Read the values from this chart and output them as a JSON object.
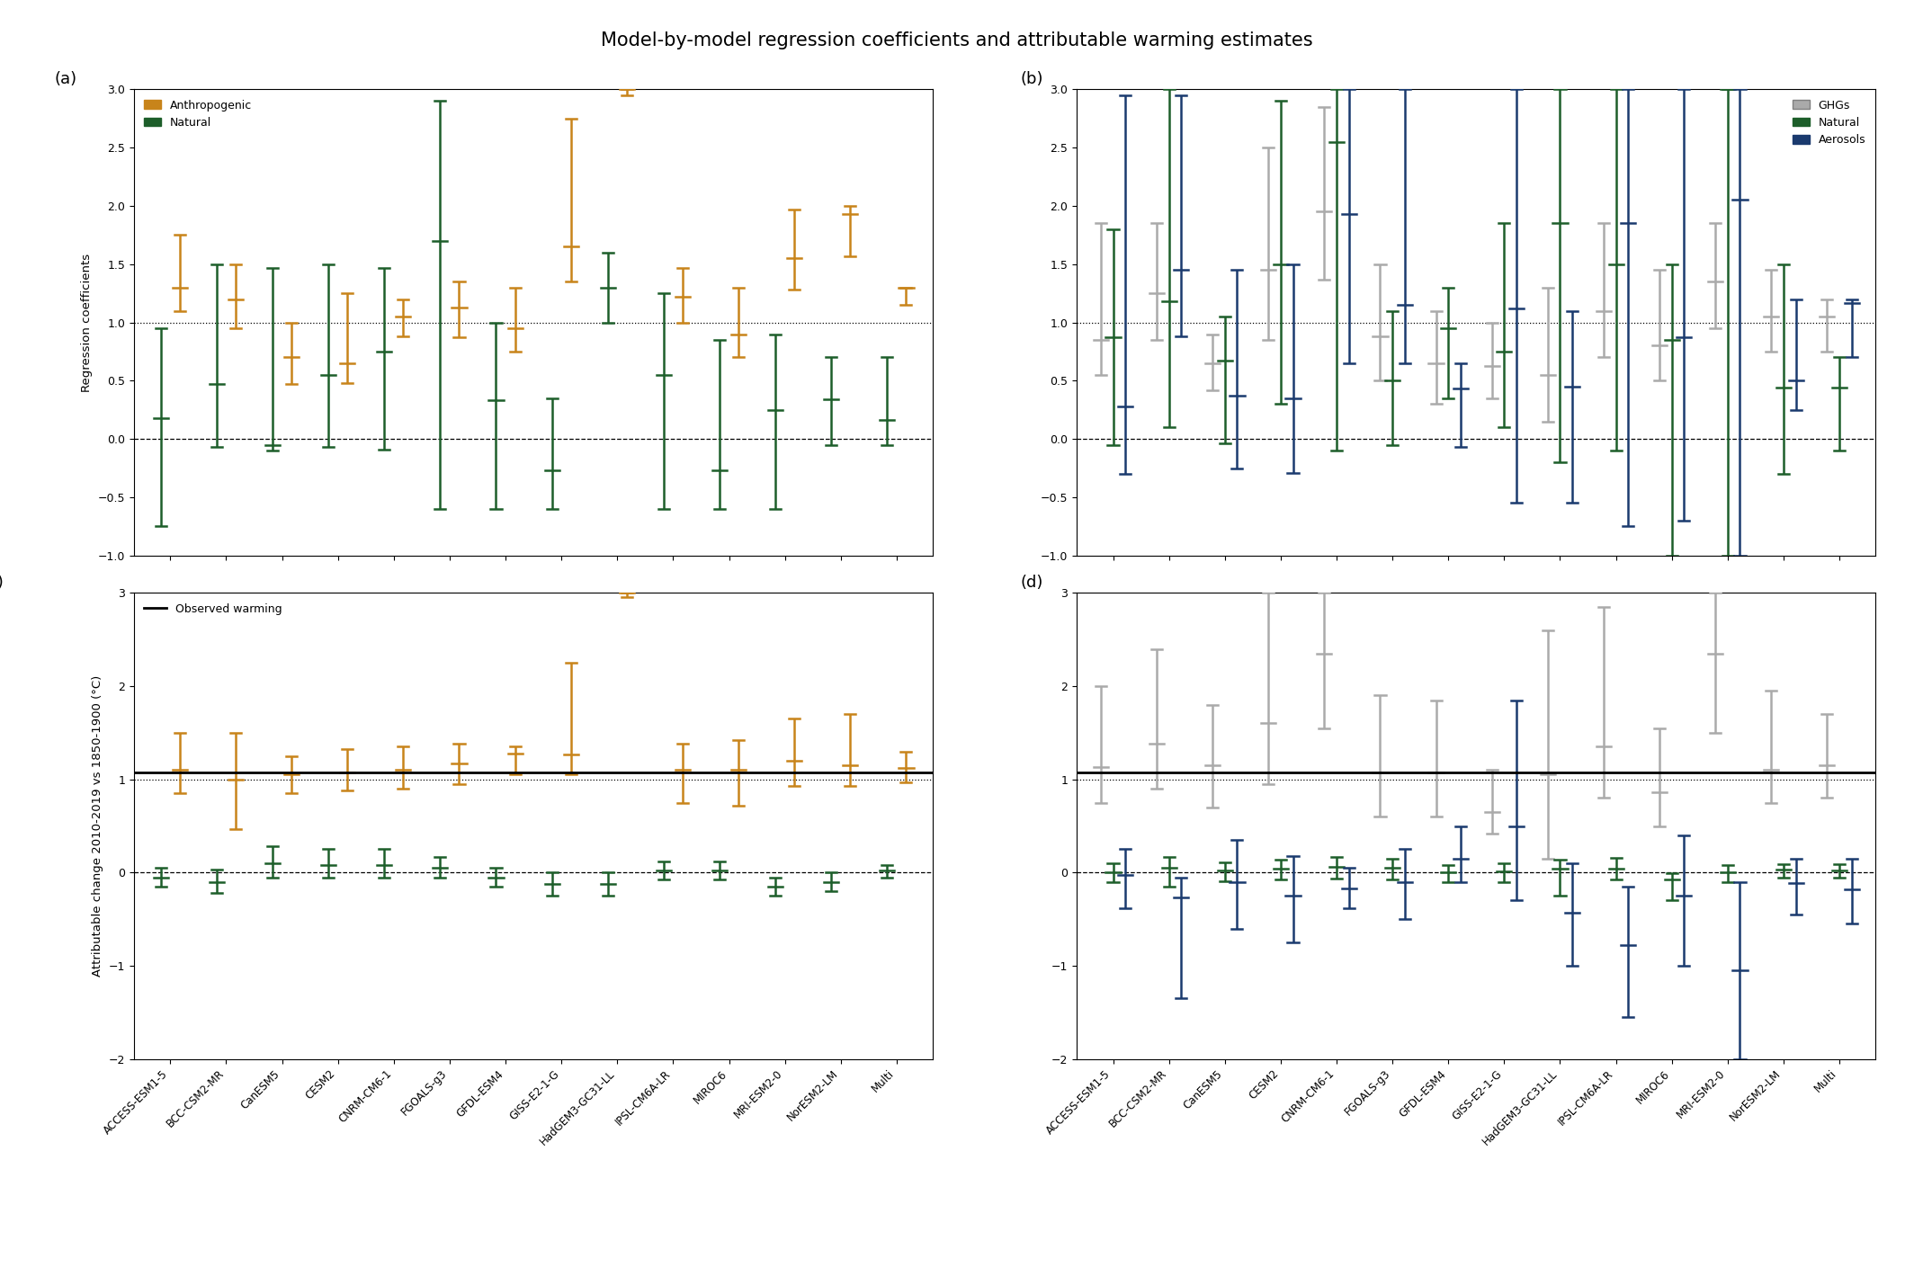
{
  "title": "Model-by-model regression coefficients and attributable warming estimates",
  "models": [
    "ACCESS-ESM1-5",
    "BCC-CSM2-MR",
    "CanESM5",
    "CESM2",
    "CNRM-CM6-1",
    "FGOALS-g3",
    "GFDL-ESM4",
    "GISS-E2-1-G",
    "HadGEM3-GC31-LL",
    "IPSL-CM6A-LR",
    "MIROC6",
    "MRI-ESM2-0",
    "NorESM2-LM",
    "Multi"
  ],
  "color_anthro": "#C8841A",
  "color_nat": "#1D5E2A",
  "color_ghg": "#AAAAAA",
  "color_aer": "#1A3A6E",
  "panel_a": {
    "anthro_center": [
      1.3,
      1.2,
      0.7,
      0.65,
      1.05,
      1.13,
      0.95,
      1.65,
      3.0,
      1.22,
      0.9,
      1.55,
      1.93,
      1.3
    ],
    "anthro_lo": [
      1.1,
      0.95,
      0.47,
      0.48,
      0.88,
      0.87,
      0.75,
      1.35,
      2.95,
      1.0,
      0.7,
      1.28,
      1.57,
      1.15
    ],
    "anthro_hi": [
      1.75,
      1.5,
      1.0,
      1.25,
      1.2,
      1.35,
      1.3,
      2.75,
      3.0,
      1.47,
      1.3,
      1.97,
      2.0,
      1.3
    ],
    "nat_center": [
      0.18,
      0.47,
      -0.05,
      0.55,
      0.75,
      1.7,
      0.33,
      -0.27,
      1.3,
      0.55,
      -0.27,
      0.25,
      0.34,
      0.16
    ],
    "nat_lo": [
      -0.75,
      -0.07,
      -0.1,
      -0.07,
      -0.09,
      -0.6,
      -0.6,
      -0.6,
      1.0,
      -0.6,
      -0.6,
      -0.6,
      -0.05,
      -0.05
    ],
    "nat_hi": [
      0.95,
      1.5,
      1.47,
      1.5,
      1.47,
      2.9,
      1.0,
      0.35,
      1.6,
      1.25,
      0.85,
      0.9,
      0.7,
      0.7
    ]
  },
  "panel_b": {
    "ghg_center": [
      0.85,
      1.25,
      0.65,
      1.45,
      1.95,
      0.88,
      0.65,
      0.63,
      0.55,
      1.1,
      0.8,
      1.35,
      1.05,
      1.05
    ],
    "ghg_lo": [
      0.55,
      0.85,
      0.42,
      0.85,
      1.37,
      0.5,
      0.3,
      0.35,
      0.15,
      0.7,
      0.5,
      0.95,
      0.75,
      0.75
    ],
    "ghg_hi": [
      1.85,
      1.85,
      0.9,
      2.5,
      2.85,
      1.5,
      1.1,
      1.0,
      1.3,
      1.85,
      1.45,
      1.85,
      1.45,
      1.2
    ],
    "nat_center": [
      0.87,
      1.18,
      0.67,
      1.5,
      2.55,
      0.5,
      0.95,
      0.75,
      1.85,
      1.5,
      0.85,
      3.0,
      0.44,
      0.44
    ],
    "nat_lo": [
      -0.05,
      0.1,
      -0.04,
      0.3,
      -0.1,
      -0.05,
      0.35,
      0.1,
      -0.2,
      -0.1,
      -1.0,
      -1.0,
      -0.3,
      -0.1
    ],
    "nat_hi": [
      1.8,
      3.0,
      1.05,
      2.9,
      3.0,
      1.1,
      1.3,
      1.85,
      3.0,
      3.0,
      1.5,
      3.0,
      1.5,
      0.7
    ],
    "aer_center": [
      0.28,
      1.45,
      0.37,
      0.35,
      1.93,
      1.15,
      0.43,
      1.12,
      0.45,
      1.85,
      0.87,
      2.05,
      0.5,
      1.17
    ],
    "aer_lo": [
      -0.3,
      0.88,
      -0.25,
      -0.29,
      0.65,
      0.65,
      -0.07,
      -0.55,
      -0.55,
      -0.75,
      -0.7,
      -1.0,
      0.25,
      0.7
    ],
    "aer_hi": [
      2.95,
      2.95,
      1.45,
      1.5,
      3.0,
      3.0,
      0.65,
      3.0,
      1.1,
      3.0,
      3.0,
      3.0,
      1.2,
      1.2
    ]
  },
  "panel_c": {
    "observed": 1.07,
    "ant_center": [
      1.1,
      1.0,
      1.05,
      1.07,
      1.1,
      1.17,
      1.28,
      1.27,
      3.0,
      1.1,
      1.1,
      1.2,
      1.15,
      1.12
    ],
    "ant_lo": [
      0.85,
      0.47,
      0.85,
      0.88,
      0.9,
      0.95,
      1.05,
      1.05,
      2.95,
      0.75,
      0.72,
      0.93,
      0.93,
      0.97
    ],
    "ant_hi": [
      1.5,
      1.5,
      1.25,
      1.32,
      1.35,
      1.38,
      1.35,
      2.25,
      3.0,
      1.38,
      1.42,
      1.65,
      1.7,
      1.3
    ],
    "nat_center": [
      -0.05,
      -0.1,
      0.1,
      0.08,
      0.08,
      0.05,
      -0.05,
      -0.12,
      -0.12,
      0.02,
      0.02,
      -0.15,
      -0.1,
      0.02
    ],
    "nat_lo": [
      -0.15,
      -0.22,
      -0.05,
      -0.05,
      -0.05,
      -0.05,
      -0.15,
      -0.25,
      -0.25,
      -0.07,
      -0.07,
      -0.25,
      -0.2,
      -0.05
    ],
    "nat_hi": [
      0.05,
      0.03,
      0.28,
      0.25,
      0.25,
      0.17,
      0.05,
      0.0,
      0.0,
      0.12,
      0.12,
      -0.05,
      0.0,
      0.08
    ]
  },
  "panel_d": {
    "observed": 1.07,
    "ghg_center": [
      1.13,
      1.38,
      1.15,
      1.6,
      2.35,
      1.07,
      1.07,
      0.65,
      1.05,
      1.35,
      0.86,
      2.35,
      1.1,
      1.15
    ],
    "ghg_lo": [
      0.75,
      0.9,
      0.7,
      0.95,
      1.55,
      0.6,
      0.6,
      0.42,
      0.15,
      0.8,
      0.5,
      1.5,
      0.75,
      0.8
    ],
    "ghg_hi": [
      2.0,
      2.4,
      1.8,
      3.0,
      3.0,
      1.9,
      1.85,
      1.1,
      2.6,
      2.85,
      1.55,
      3.0,
      1.95,
      1.7
    ],
    "nat_center": [
      0.0,
      0.05,
      0.02,
      0.04,
      0.06,
      0.05,
      0.0,
      0.01,
      0.04,
      0.04,
      -0.07,
      0.0,
      0.03,
      0.02
    ],
    "nat_lo": [
      -0.1,
      -0.15,
      -0.09,
      -0.07,
      -0.06,
      -0.07,
      -0.1,
      -0.1,
      -0.25,
      -0.07,
      -0.3,
      -0.1,
      -0.05,
      -0.05
    ],
    "nat_hi": [
      0.1,
      0.17,
      0.11,
      0.14,
      0.17,
      0.15,
      0.08,
      0.1,
      0.14,
      0.16,
      -0.01,
      0.08,
      0.09,
      0.09
    ],
    "aer_center": [
      -0.03,
      -0.27,
      -0.1,
      -0.25,
      -0.17,
      -0.1,
      0.15,
      0.5,
      -0.43,
      -0.78,
      -0.25,
      -1.05,
      -0.11,
      -0.18
    ],
    "aer_lo": [
      -0.38,
      -1.35,
      -0.6,
      -0.75,
      -0.38,
      -0.5,
      -0.1,
      -0.3,
      -1.0,
      -1.55,
      -1.0,
      -2.0,
      -0.45,
      -0.55
    ],
    "aer_hi": [
      0.25,
      -0.05,
      0.35,
      0.18,
      0.05,
      0.25,
      0.5,
      1.85,
      0.1,
      -0.15,
      0.4,
      -0.1,
      0.15,
      0.15
    ]
  }
}
